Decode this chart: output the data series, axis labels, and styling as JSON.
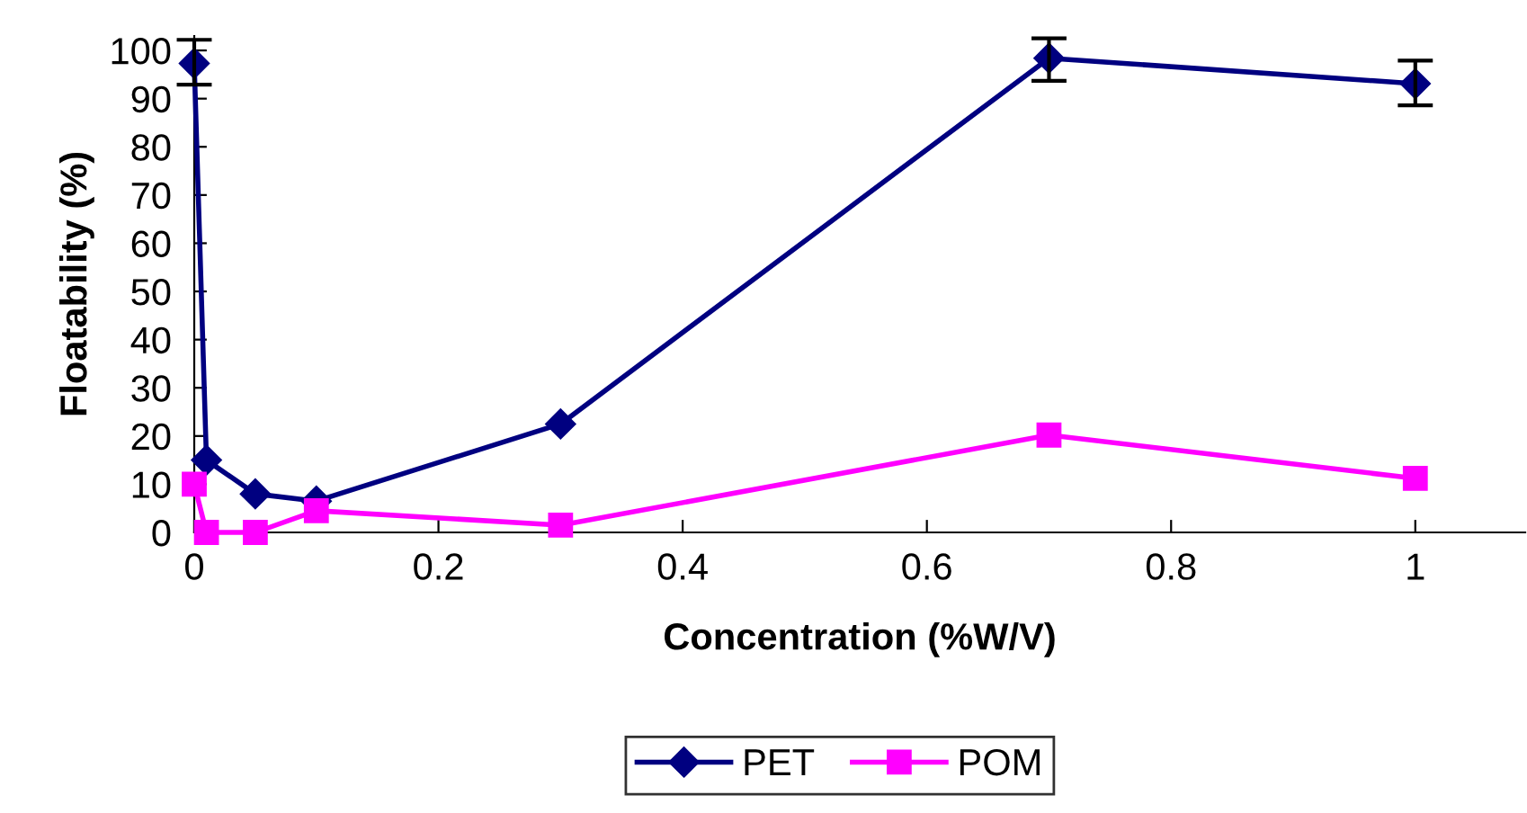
{
  "chart_data": {
    "type": "line",
    "xlabel": "Concentration (%W/V)",
    "ylabel": "Floatability (%)",
    "x": [
      0,
      0.01,
      0.05,
      0.1,
      0.3,
      0.7,
      1
    ],
    "series": [
      {
        "name": "PET",
        "color": "#000080",
        "marker": "diamond",
        "values": [
          97.3,
          15,
          8,
          6.5,
          22.5,
          98.4,
          93.1
        ],
        "errors": [
          [
            92.9,
            102.2
          ],
          null,
          null,
          null,
          null,
          [
            93.7,
            102.5
          ],
          [
            88.6,
            97.9
          ]
        ]
      },
      {
        "name": "POM",
        "color": "#ff00ff",
        "marker": "square",
        "values": [
          10,
          0,
          0,
          4.5,
          1.5,
          20.2,
          11.2
        ]
      }
    ],
    "xlim": [
      0,
      1.09
    ],
    "xticks": [
      0,
      0.2,
      0.4,
      0.6,
      0.8,
      1
    ],
    "ylim": [
      0,
      103
    ],
    "yticks": [
      0,
      10,
      20,
      30,
      40,
      50,
      60,
      70,
      80,
      90,
      100
    ],
    "grid": false,
    "legend": "bottom",
    "line_style": "solid"
  }
}
